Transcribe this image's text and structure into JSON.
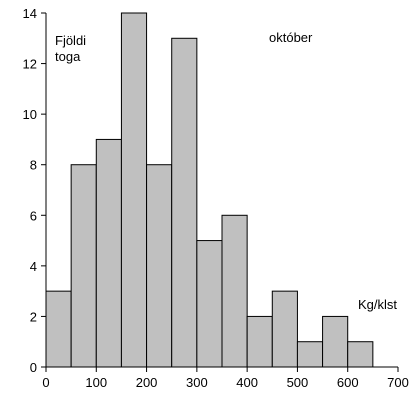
{
  "chart_data": {
    "type": "bar",
    "subtype": "histogram",
    "title": "október",
    "ylabel_lines": [
      "Fjöldi",
      "toga"
    ],
    "xlabel": "Kg/klst",
    "bins": [
      {
        "start": 0,
        "end": 50,
        "value": 3
      },
      {
        "start": 50,
        "end": 100,
        "value": 8
      },
      {
        "start": 100,
        "end": 150,
        "value": 9
      },
      {
        "start": 150,
        "end": 200,
        "value": 14
      },
      {
        "start": 200,
        "end": 250,
        "value": 8
      },
      {
        "start": 250,
        "end": 300,
        "value": 13
      },
      {
        "start": 300,
        "end": 350,
        "value": 5
      },
      {
        "start": 350,
        "end": 400,
        "value": 6
      },
      {
        "start": 400,
        "end": 450,
        "value": 2
      },
      {
        "start": 450,
        "end": 500,
        "value": 3
      },
      {
        "start": 500,
        "end": 550,
        "value": 1
      },
      {
        "start": 550,
        "end": 600,
        "value": 2
      },
      {
        "start": 600,
        "end": 650,
        "value": 1
      }
    ],
    "xlim": [
      0,
      700
    ],
    "ylim": [
      0,
      14
    ],
    "xticks": [
      0,
      100,
      200,
      300,
      400,
      500,
      600,
      700
    ],
    "yticks": [
      0,
      2,
      4,
      6,
      8,
      10,
      12,
      14
    ],
    "grid": false,
    "bar_color": "#c0c0c0",
    "edge_color": "#000000"
  }
}
